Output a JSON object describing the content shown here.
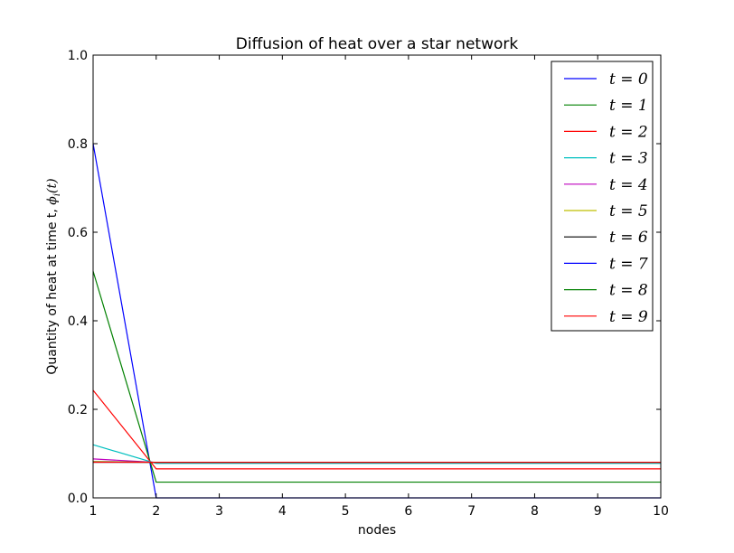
{
  "chart_data": {
    "type": "line",
    "title": "Diffusion of heat over a star network",
    "xlabel": "nodes",
    "ylabel": "Quantity of heat at time t, ϕ_i(t)",
    "xlim": [
      1,
      10
    ],
    "ylim": [
      0,
      1.0
    ],
    "xticks": [
      "1",
      "2",
      "3",
      "4",
      "5",
      "6",
      "7",
      "8",
      "9",
      "10"
    ],
    "yticks": [
      "0.0",
      "0.2",
      "0.4",
      "0.6",
      "0.8",
      "1.0"
    ],
    "grid": false,
    "legend_position": "top-right",
    "x": [
      1,
      2,
      3,
      4,
      5,
      6,
      7,
      8,
      9,
      10
    ],
    "series": [
      {
        "name": "t = 0",
        "color": "#0000ff",
        "values": [
          0.8,
          0.0,
          0.0,
          0.0,
          0.0,
          0.0,
          0.0,
          0.0,
          0.0,
          0.0
        ]
      },
      {
        "name": "t = 1",
        "color": "#008000",
        "values": [
          0.512,
          0.0356,
          0.0356,
          0.0356,
          0.0356,
          0.0356,
          0.0356,
          0.0356,
          0.0356,
          0.0356
        ]
      },
      {
        "name": "t = 2",
        "color": "#ff0000",
        "values": [
          0.243,
          0.0656,
          0.0656,
          0.0656,
          0.0656,
          0.0656,
          0.0656,
          0.0656,
          0.0656,
          0.0656
        ]
      },
      {
        "name": "t = 3",
        "color": "#00bfbf",
        "values": [
          0.12,
          0.078,
          0.078,
          0.078,
          0.078,
          0.078,
          0.078,
          0.078,
          0.078,
          0.078
        ]
      },
      {
        "name": "t = 4",
        "color": "#bf00bf",
        "values": [
          0.088,
          0.0802,
          0.0802,
          0.0802,
          0.0802,
          0.0802,
          0.0802,
          0.0802,
          0.0802,
          0.0802
        ]
      },
      {
        "name": "t = 5",
        "color": "#bfbf00",
        "values": [
          0.082,
          0.0804,
          0.0804,
          0.0804,
          0.0804,
          0.0804,
          0.0804,
          0.0804,
          0.0804,
          0.0804
        ]
      },
      {
        "name": "t = 6",
        "color": "#000000",
        "values": [
          0.081,
          0.0805,
          0.0805,
          0.0805,
          0.0805,
          0.0805,
          0.0805,
          0.0805,
          0.0805,
          0.0805
        ]
      },
      {
        "name": "t = 7",
        "color": "#0000ff",
        "values": [
          0.0805,
          0.0805,
          0.0805,
          0.0805,
          0.0805,
          0.0805,
          0.0805,
          0.0805,
          0.0805,
          0.0805
        ]
      },
      {
        "name": "t = 8",
        "color": "#008000",
        "values": [
          0.0805,
          0.0805,
          0.0805,
          0.0805,
          0.0805,
          0.0805,
          0.0805,
          0.0805,
          0.0805,
          0.0805
        ]
      },
      {
        "name": "t = 9",
        "color": "#ff0000",
        "values": [
          0.0805,
          0.0805,
          0.0805,
          0.0805,
          0.0805,
          0.0805,
          0.0805,
          0.0805,
          0.0805,
          0.0805
        ]
      }
    ]
  }
}
